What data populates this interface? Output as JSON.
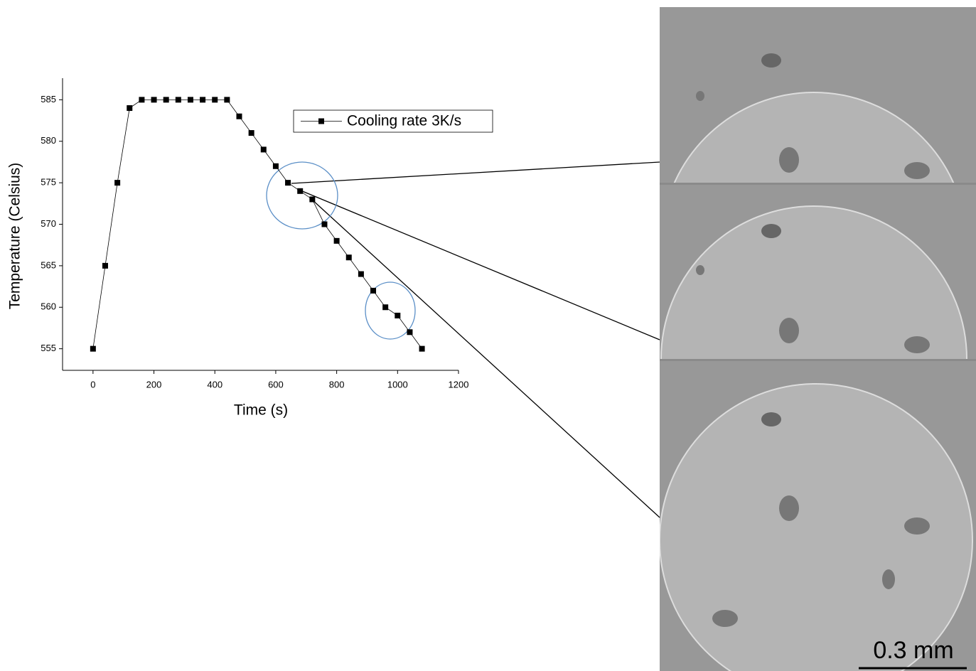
{
  "chart_data": {
    "type": "line",
    "x": [
      0,
      40,
      80,
      120,
      160,
      200,
      240,
      280,
      320,
      360,
      400,
      440,
      480,
      520,
      560,
      600,
      640,
      680,
      720,
      760,
      800,
      840,
      880,
      920,
      960,
      1000,
      1040,
      1080
    ],
    "series": [
      {
        "name": "Cooling rate 3K/s",
        "color": "#000000",
        "values": [
          555,
          565,
          575,
          584,
          585,
          585,
          585,
          585,
          585,
          585,
          585,
          585,
          583,
          581,
          579,
          577,
          575,
          574,
          573,
          570,
          568,
          566,
          564,
          562,
          560,
          559,
          557,
          555
        ]
      }
    ],
    "x_label": "Time (s)",
    "y_label": "Temperature (Celsius)",
    "xlim": [
      -100,
      1200
    ],
    "xticks": [
      0,
      200,
      400,
      600,
      800,
      1000,
      1200
    ],
    "ylim": [
      552.4,
      587.6
    ],
    "yticks": [
      555,
      560,
      565,
      570,
      575,
      580,
      585
    ],
    "grid": false,
    "legend": "top-right",
    "scale_bar": "0.3 mm"
  }
}
